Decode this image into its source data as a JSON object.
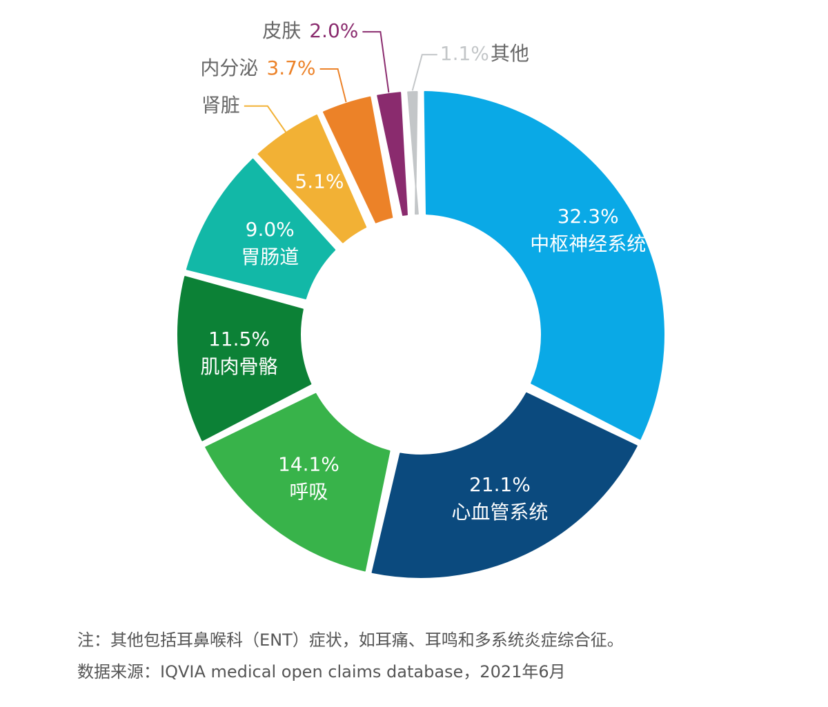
{
  "chart_data": {
    "type": "pie",
    "title": "",
    "slices": [
      {
        "label": "中枢神经系统",
        "value": 32.3,
        "value_label": "32.3%",
        "color": "#0aa9e6"
      },
      {
        "label": "心血管系统",
        "value": 21.1,
        "value_label": "21.1%",
        "color": "#0b4a7e"
      },
      {
        "label": "呼吸",
        "value": 14.1,
        "value_label": "14.1%",
        "color": "#38b34a"
      },
      {
        "label": "肌肉骨骼",
        "value": 11.5,
        "value_label": "11.5%",
        "color": "#0c8136"
      },
      {
        "label": "胃肠道",
        "value": 9.0,
        "value_label": "9.0%",
        "color": "#12b8a7"
      },
      {
        "label": "肾脏",
        "value": 5.1,
        "value_label": "5.1%",
        "color": "#f2b135"
      },
      {
        "label": "内分泌",
        "value": 3.7,
        "value_label": "3.7%",
        "color": "#ec8228"
      },
      {
        "label": "皮肤",
        "value": 2.0,
        "value_label": "2.0%",
        "color": "#8a2b6e"
      },
      {
        "label": "其他",
        "value": 1.1,
        "value_label": "1.1%",
        "color": "#c3c6c8"
      }
    ],
    "legend": "none"
  },
  "notes": {
    "note": "注：其他包括耳鼻喉科（ENT）症状，如耳痛、耳鸣和多系统炎症综合征。",
    "source": "数据来源：IQVIA medical open claims database，2021年6月"
  },
  "colors": {
    "leader_label_text": "#666666"
  }
}
